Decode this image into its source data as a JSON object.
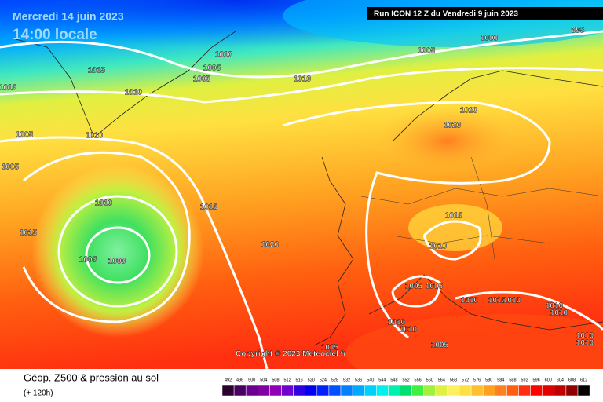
{
  "header": {
    "date": "Mercredi 14 juin 2023",
    "time": "14:00 locale",
    "run": "Run ICON 12 Z du Vendredi 9 juin 2023"
  },
  "copyright": "Copyright © 2023 Meteociel.fr",
  "isobar_labels": [
    "1010",
    "1015",
    "1005",
    "1005",
    "1015",
    "1010",
    "1010",
    "1005",
    "1000",
    "995",
    "1005",
    "1010",
    "1005",
    "1020",
    "1020",
    "1010",
    "1015",
    "1015",
    "1015",
    "1020",
    "1005",
    "1000",
    "1010",
    "1005",
    "1005",
    "1010",
    "1010",
    "1010",
    "1010",
    "1010",
    "1010",
    "1010",
    "1015",
    "1005",
    "1010",
    "1010"
  ],
  "legend": {
    "title": "Géop. Z500 & pression au sol",
    "subtitle": "(+ 120h)",
    "values": [
      492,
      496,
      500,
      504,
      508,
      512,
      516,
      520,
      524,
      528,
      532,
      536,
      540,
      544,
      548,
      552,
      556,
      560,
      564,
      568,
      572,
      576,
      580,
      584,
      588,
      592,
      596,
      600,
      604,
      608,
      612
    ],
    "colors": [
      "#2a0030",
      "#4a0060",
      "#6a0090",
      "#8000a0",
      "#9000b8",
      "#7000d0",
      "#3000e0",
      "#0000f0",
      "#0020ff",
      "#0050ff",
      "#0080ff",
      "#00a8ff",
      "#00d0ff",
      "#00f0f0",
      "#00f0b0",
      "#00e070",
      "#40f040",
      "#a0f040",
      "#e0f040",
      "#fff060",
      "#ffe040",
      "#ffc030",
      "#ffa020",
      "#ff8020",
      "#ff6010",
      "#ff3010",
      "#ff0000",
      "#e00000",
      "#c00000",
      "#900000",
      "#000000"
    ]
  }
}
